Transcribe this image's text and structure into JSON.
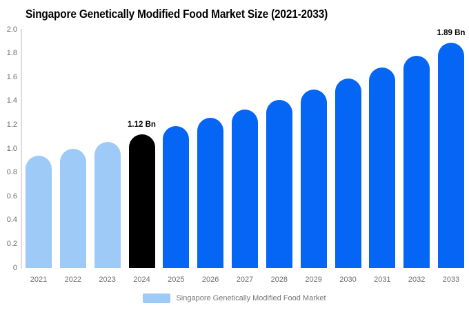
{
  "chart_data": {
    "type": "bar",
    "title": "Singapore Genetically Modified Food Market Size (2021-2033)",
    "categories": [
      "2021",
      "2022",
      "2023",
      "2024",
      "2025",
      "2026",
      "2027",
      "2028",
      "2029",
      "2030",
      "2031",
      "2032",
      "2033"
    ],
    "values": [
      0.94,
      1.0,
      1.06,
      1.12,
      1.19,
      1.26,
      1.33,
      1.41,
      1.5,
      1.59,
      1.68,
      1.78,
      1.89
    ],
    "unit": "Bn",
    "xlabel": "",
    "ylabel": "",
    "ylim": [
      0,
      2
    ],
    "ytick_step": 0.2,
    "ytick_labels": [
      "0",
      "0.2",
      "0.4",
      "0.6",
      "0.8",
      "1.0",
      "1.2",
      "1.4",
      "1.6",
      "1.8",
      "2.0"
    ],
    "grid": false,
    "legend": [
      "Singapore Genetically Modified Food Market"
    ],
    "legend_position": "bottom",
    "annotations": [
      {
        "category": "2024",
        "text": "1.12 Bn"
      },
      {
        "category": "2033",
        "text": "1.89 Bn"
      }
    ],
    "bar_color_roles": [
      "historical",
      "historical",
      "historical",
      "base_year",
      "forecast",
      "forecast",
      "forecast",
      "forecast",
      "forecast",
      "forecast",
      "forecast",
      "forecast",
      "forecast"
    ],
    "colors": {
      "historical": "#9ECAF8",
      "base_year": "#000000",
      "forecast": "#0566F5",
      "axis_text": "#6E6E6E",
      "legend_text": "#757575",
      "title_text": "#000000",
      "axis_line": "#DCDCDC"
    }
  }
}
